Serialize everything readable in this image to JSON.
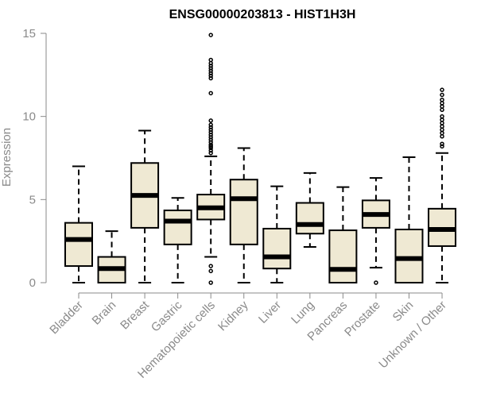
{
  "chart_data": {
    "type": "box",
    "title": "ENSG00000203813 - HIST1H3H",
    "xlabel": "",
    "ylabel": "Expression",
    "ylim": [
      0,
      15
    ],
    "yticks": [
      0,
      5,
      10,
      15
    ],
    "grid": false,
    "box_fill": "#efe9d3",
    "box_stroke": "#000000",
    "axis_color": "#8a8a8a",
    "categories": [
      "Bladder",
      "Brain",
      "Breast",
      "Gastric",
      "Hematopoietic cells",
      "Kidney",
      "Liver",
      "Lung",
      "Pancreas",
      "Prostate",
      "Skin",
      "Unknown / Other"
    ],
    "boxes": [
      {
        "category": "Bladder",
        "whisker_low": 0,
        "q1": 1.0,
        "median": 2.6,
        "q3": 3.6,
        "whisker_high": 7.0,
        "outliers": []
      },
      {
        "category": "Brain",
        "whisker_low": 0,
        "q1": 0,
        "median": 0.85,
        "q3": 1.55,
        "whisker_high": 3.1,
        "outliers": []
      },
      {
        "category": "Breast",
        "whisker_low": 0,
        "q1": 3.3,
        "median": 5.25,
        "q3": 7.2,
        "whisker_high": 9.15,
        "outliers": []
      },
      {
        "category": "Gastric",
        "whisker_low": 0,
        "q1": 2.3,
        "median": 3.7,
        "q3": 4.35,
        "whisker_high": 5.1,
        "outliers": []
      },
      {
        "category": "Hematopoietic cells",
        "whisker_low": 1.55,
        "q1": 3.8,
        "median": 4.5,
        "q3": 5.3,
        "whisker_high": 7.6,
        "outliers": [
          0,
          0.7,
          1.0,
          7.8,
          7.95,
          8.1,
          8.2,
          8.3,
          8.45,
          8.6,
          8.75,
          8.9,
          9.05,
          9.2,
          9.35,
          9.5,
          9.75,
          11.4,
          12.3,
          12.45,
          12.6,
          12.75,
          12.9,
          13.05,
          13.2,
          13.4,
          14.9
        ]
      },
      {
        "category": "Kidney",
        "whisker_low": 0,
        "q1": 2.3,
        "median": 5.05,
        "q3": 6.2,
        "whisker_high": 8.1,
        "outliers": []
      },
      {
        "category": "Liver",
        "whisker_low": 0,
        "q1": 0.85,
        "median": 1.55,
        "q3": 3.25,
        "whisker_high": 5.8,
        "outliers": []
      },
      {
        "category": "Lung",
        "whisker_low": 2.15,
        "q1": 2.95,
        "median": 3.5,
        "q3": 4.8,
        "whisker_high": 6.6,
        "outliers": []
      },
      {
        "category": "Pancreas",
        "whisker_low": 0,
        "q1": 0,
        "median": 0.8,
        "q3": 3.15,
        "whisker_high": 5.75,
        "outliers": []
      },
      {
        "category": "Prostate",
        "whisker_low": 0.9,
        "q1": 3.3,
        "median": 4.1,
        "q3": 4.95,
        "whisker_high": 6.3,
        "outliers": [
          0
        ]
      },
      {
        "category": "Skin",
        "whisker_low": 0,
        "q1": 0,
        "median": 1.45,
        "q3": 3.2,
        "whisker_high": 7.55,
        "outliers": []
      },
      {
        "category": "Unknown / Other",
        "whisker_low": 0,
        "q1": 2.2,
        "median": 3.2,
        "q3": 4.45,
        "whisker_high": 7.8,
        "outliers": [
          8.2,
          8.35,
          8.8,
          9.0,
          9.2,
          9.4,
          9.6,
          9.8,
          10.0,
          10.4,
          10.6,
          10.8,
          11.0,
          11.3,
          11.6
        ]
      }
    ]
  }
}
